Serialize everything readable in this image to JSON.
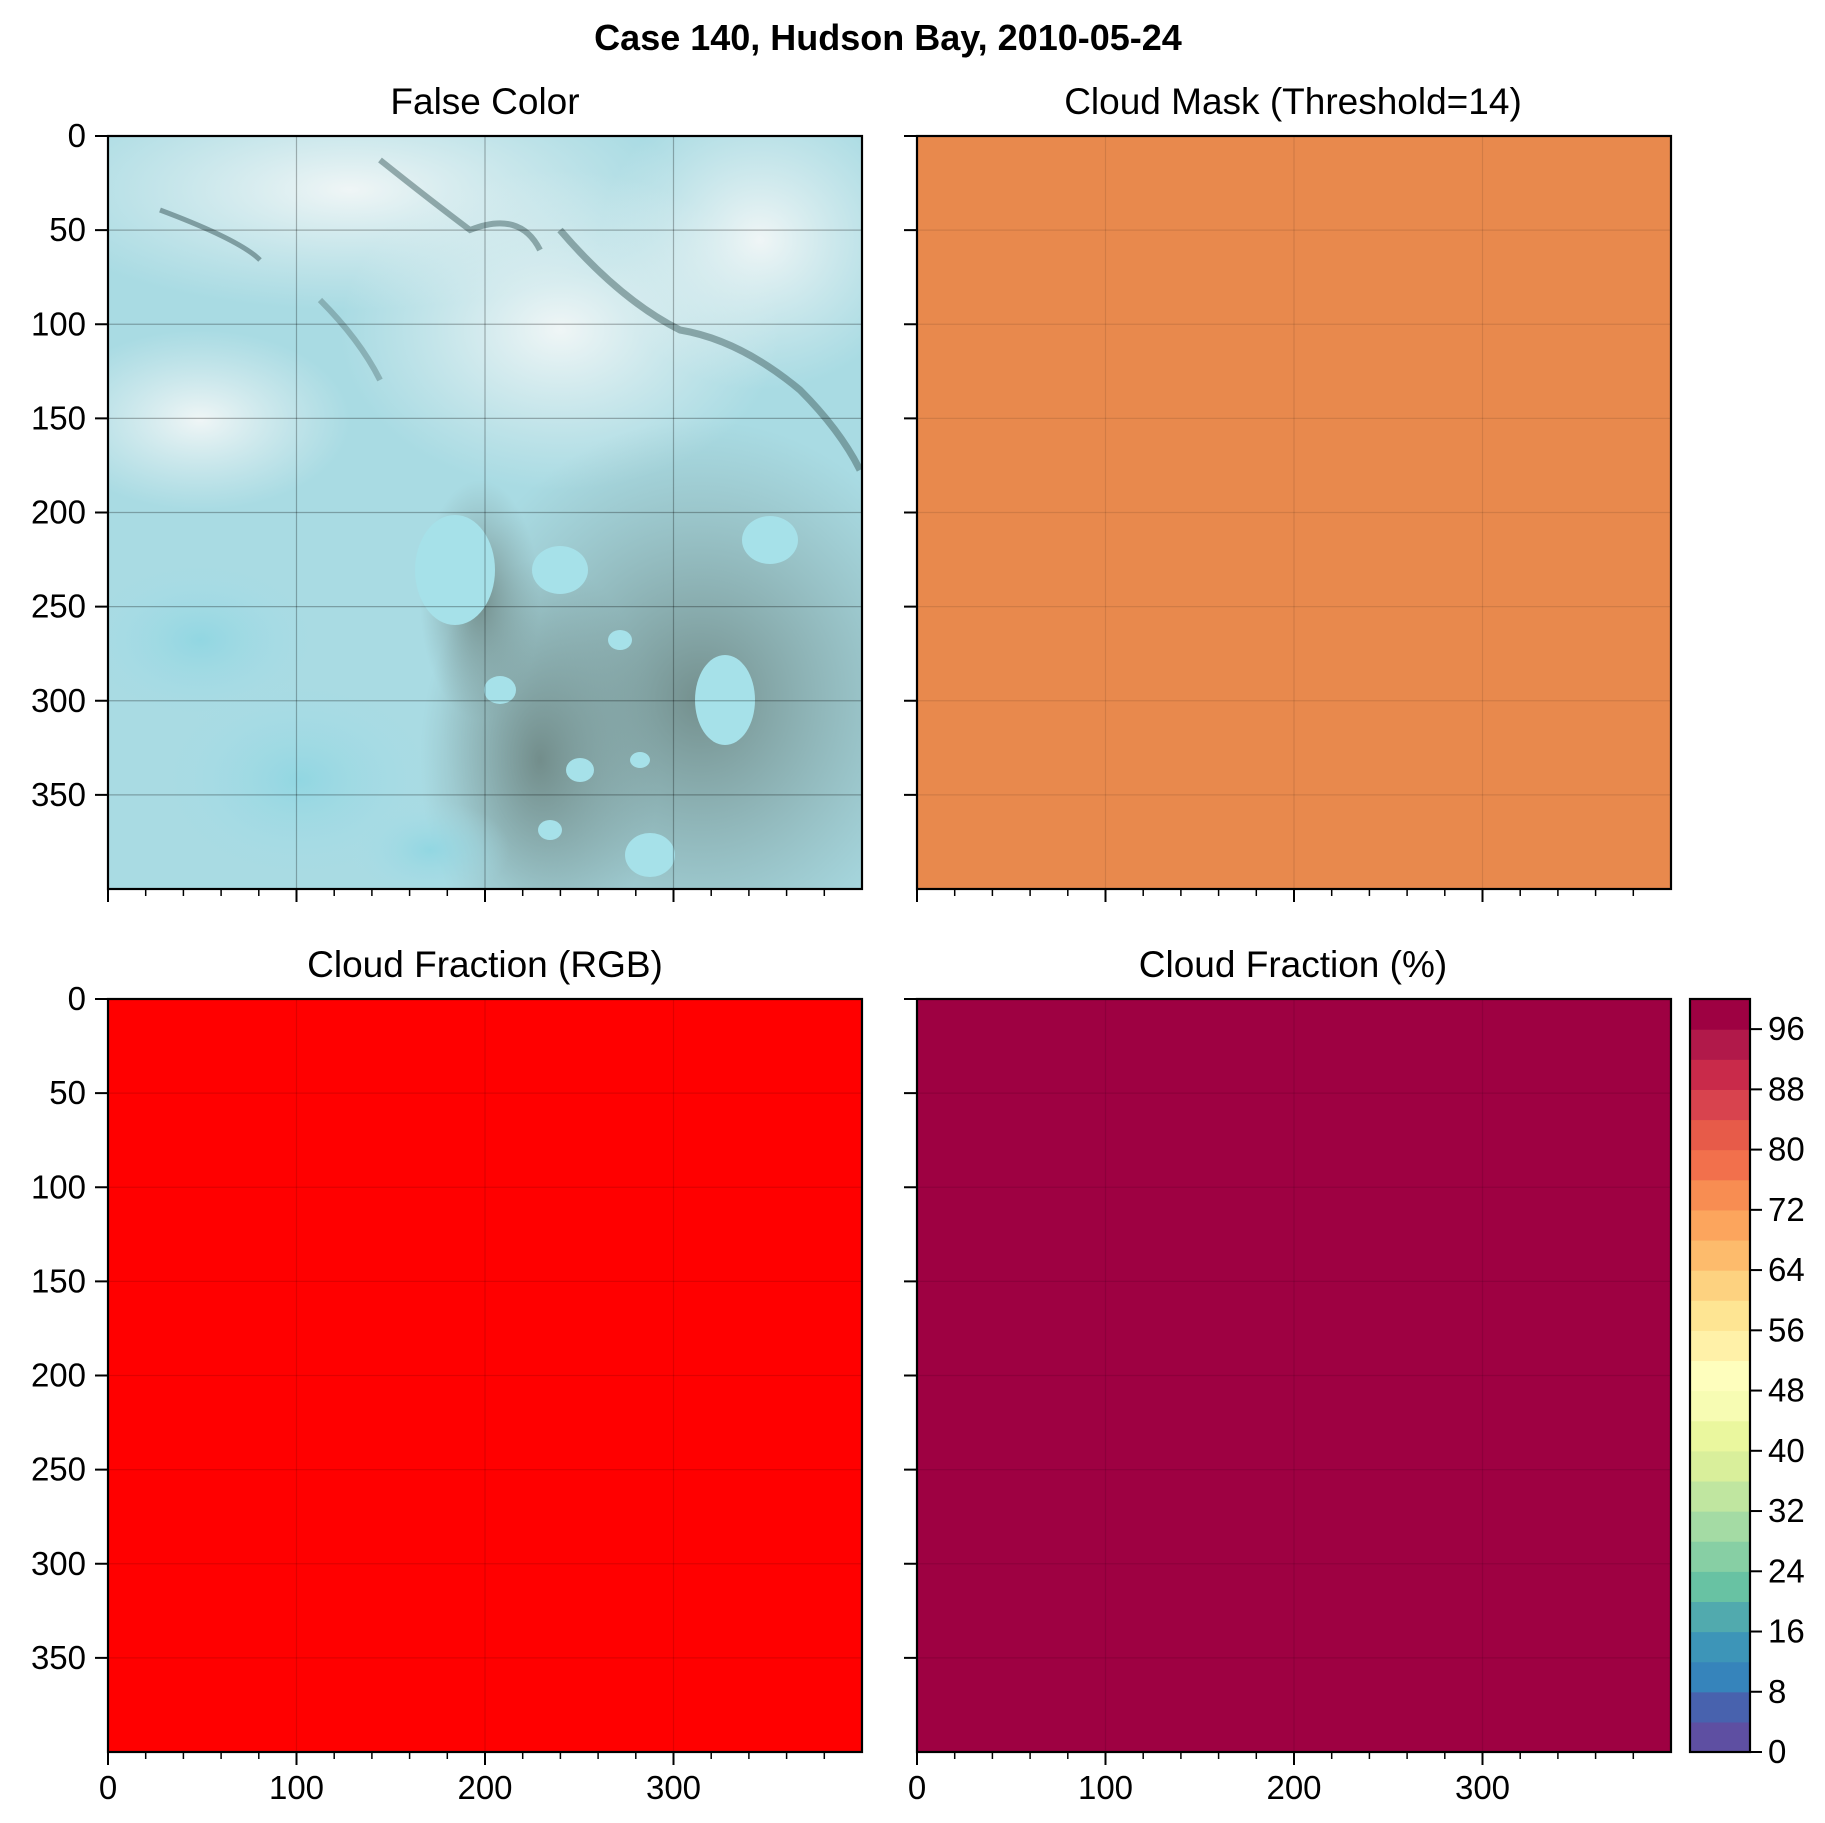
{
  "figure": {
    "suptitle": "Case 140, Hudson Bay, 2010-05-24"
  },
  "colors": {
    "cloud_mask_fill": "#e8894d",
    "cloud_fraction_rgb_fill": "#ff0000",
    "cloud_fraction_pct_fill": "#9e0142",
    "axis": "#000000",
    "gridline": "#000000"
  },
  "chart_data": [
    {
      "type": "image",
      "title": "False Color",
      "description_colors": [
        "#a8dde6",
        "#e9f1f2",
        "#9fd4dc",
        "#7fa3a4",
        "#6d8a89"
      ],
      "xlim": [
        0,
        400
      ],
      "ylim": [
        400,
        0
      ],
      "x_ticks": [
        0,
        100,
        200,
        300
      ],
      "y_ticks": [
        0,
        50,
        100,
        150,
        200,
        250,
        300,
        350
      ],
      "x_tick_labels_visible": false,
      "y_tick_labels_visible": true,
      "grid": true
    },
    {
      "type": "heatmap",
      "title": "Cloud Mask (Threshold=14)",
      "uniform_value_color": "#e8894d",
      "xlim": [
        0,
        400
      ],
      "ylim": [
        400,
        0
      ],
      "x_ticks": [
        0,
        100,
        200,
        300
      ],
      "y_ticks": [
        0,
        50,
        100,
        150,
        200,
        250,
        300,
        350
      ],
      "x_tick_labels_visible": false,
      "y_tick_labels_visible": false,
      "grid": true
    },
    {
      "type": "heatmap",
      "title": "Cloud Fraction (RGB)",
      "uniform_value_color": "#ff0000",
      "xlim": [
        0,
        400
      ],
      "ylim": [
        400,
        0
      ],
      "x_ticks": [
        0,
        100,
        200,
        300
      ],
      "y_ticks": [
        0,
        50,
        100,
        150,
        200,
        250,
        300,
        350
      ],
      "x_tick_labels_visible": true,
      "y_tick_labels_visible": true,
      "grid": true
    },
    {
      "type": "heatmap",
      "title": "Cloud Fraction (%)",
      "uniform_value": 100,
      "uniform_value_color": "#9e0142",
      "xlim": [
        0,
        400
      ],
      "ylim": [
        400,
        0
      ],
      "x_ticks": [
        0,
        100,
        200,
        300
      ],
      "y_ticks": [
        0,
        50,
        100,
        150,
        200,
        250,
        300,
        350
      ],
      "x_tick_labels_visible": true,
      "y_tick_labels_visible": false,
      "grid": true,
      "colorbar": {
        "range": [
          0,
          100
        ],
        "step": 4,
        "ticks": [
          0,
          8,
          16,
          24,
          32,
          40,
          48,
          56,
          64,
          72,
          80,
          88,
          96
        ],
        "colors": [
          "#5e4fa2",
          "#4862ae",
          "#3684bb",
          "#3d95b8",
          "#51aaae",
          "#68c2a3",
          "#87cfa4",
          "#a4dba4",
          "#c0e6a0",
          "#d9ef9b",
          "#eaf79e",
          "#f7fcb3",
          "#fefebd",
          "#fff1a8",
          "#fee593",
          "#fdd280",
          "#fdbb6c",
          "#fca55d",
          "#f88d52",
          "#f2704c",
          "#e75b49",
          "#d8434e",
          "#c92a4a",
          "#b1194a",
          "#9e0142"
        ]
      }
    }
  ]
}
